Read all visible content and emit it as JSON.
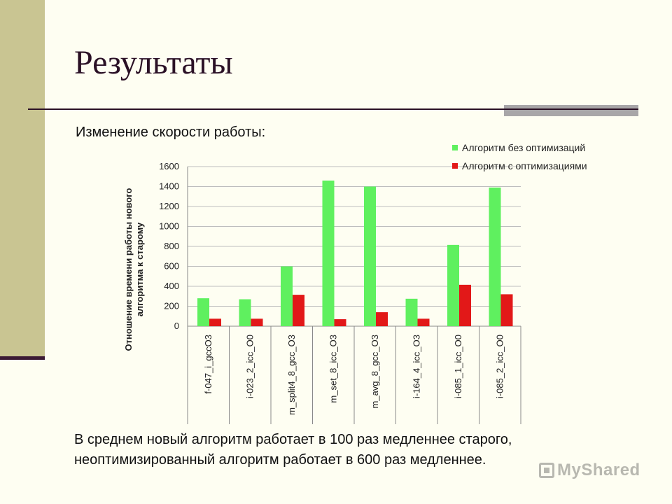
{
  "slide": {
    "title": "Результаты",
    "subtitle": "Изменение скорости работы:",
    "summary_line1": "В среднем новый алгоритм работает в 100 раз медленнее старого,",
    "summary_line2": "неоптимизированный алгоритм работает в 600 раз медленнее."
  },
  "watermark": {
    "text": "MyShared"
  },
  "colors": {
    "series_unoptimized": "#5FF05F",
    "series_optimized": "#E21818",
    "grid": "#BDBDBD",
    "axis": "#8A8A8A"
  },
  "chart_data": {
    "type": "bar",
    "title": "",
    "ylabel": "Отношение времени работы нового алгоритма к старому",
    "ylim": [
      0,
      1600
    ],
    "yticks": [
      0,
      200,
      400,
      600,
      800,
      1000,
      1200,
      1400,
      1600
    ],
    "categories": [
      "f-047_i_gccO3",
      "i-023_2_icc_O0",
      "m_split4_8_gcc_O3",
      "m_set_8_icc_O3",
      "m_avg_8_gcc_O3",
      "i-164_4_icc_O3",
      "i-085_1_icc_O0",
      "i-085_2_icc_O0"
    ],
    "series": [
      {
        "name": "Алгоритм без оптимизаций",
        "values": [
          280,
          270,
          600,
          1460,
          1400,
          275,
          815,
          1390
        ]
      },
      {
        "name": "Алгоритм с оптимизациями",
        "values": [
          75,
          75,
          315,
          70,
          140,
          75,
          415,
          320
        ]
      }
    ],
    "legend": "top-right"
  }
}
